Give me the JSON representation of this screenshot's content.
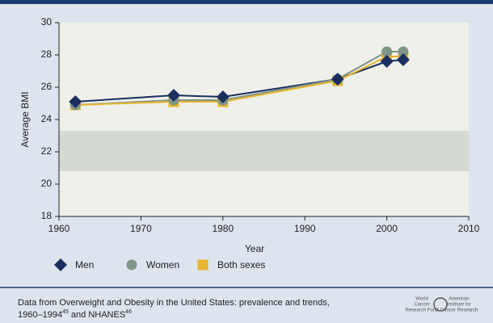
{
  "chart_data": {
    "type": "line",
    "x_label": "Year",
    "y_label": "Average BMI",
    "x": [
      1962,
      1974,
      1980,
      1994,
      2000,
      2002
    ],
    "series": [
      {
        "name": "Men",
        "color": "#1b2f5f",
        "marker": "diamond",
        "values": [
          25.1,
          25.5,
          25.4,
          26.5,
          27.6,
          27.7
        ]
      },
      {
        "name": "Women",
        "color": "#7f9588",
        "marker": "circle",
        "values": [
          24.9,
          25.2,
          25.2,
          26.5,
          28.2,
          28.2
        ]
      },
      {
        "name": "Both sexes",
        "color": "#e8b52e",
        "marker": "square",
        "values": [
          24.9,
          25.1,
          25.1,
          26.4,
          27.9,
          27.9
        ]
      }
    ],
    "xlim": [
      1960,
      2010
    ],
    "xticks": [
      1960,
      1970,
      1980,
      1990,
      2000,
      2010
    ],
    "ylim": [
      18,
      30
    ],
    "yticks": [
      18,
      20,
      22,
      24,
      26,
      28,
      30
    ],
    "shaded_band": [
      20.8,
      23.3
    ],
    "source": [
      "Data from Overweight and Obesity in the United States: prevalence and trends,",
      "1960–1994",
      "45",
      " and NHANES",
      "46"
    ],
    "logos": [
      [
        "World",
        "Cancer",
        "Research Fund"
      ],
      [
        "American",
        "Institute for",
        "Cancer Research"
      ]
    ]
  }
}
